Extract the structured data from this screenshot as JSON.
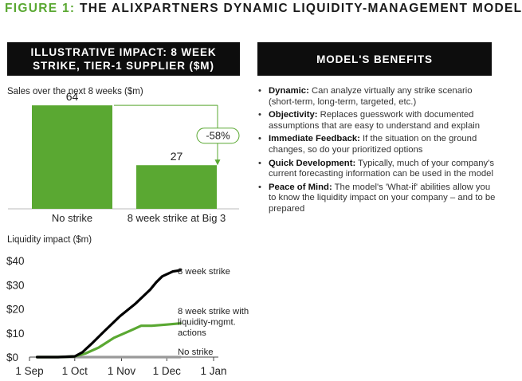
{
  "figure": {
    "number": "FIGURE 1:",
    "title": "THE ALIXPARTNERS DYNAMIC LIQUIDITY-MANAGEMENT MODEL"
  },
  "left_panel": {
    "header": "ILLUSTRATIVE IMPACT: 8 WEEK STRIKE, TIER-1 SUPPLIER ($M)"
  },
  "right_panel": {
    "header": "MODEL'S BENEFITS",
    "benefits": [
      {
        "term": "Dynamic:",
        "text": "Can analyze virtually any strike scenario (short-term, long-term, targeted, etc.)"
      },
      {
        "term": "Objectivity:",
        "text": "Replaces guesswork with documented assumptions that are easy to understand and explain"
      },
      {
        "term": "Immediate Feedback:",
        "text": "If the situation on the ground changes, so do your prioritized options"
      },
      {
        "term": "Quick Development:",
        "text": "Typically, much of your company's current forecasting information can be used in the model"
      },
      {
        "term": "Peace of Mind:",
        "text": "The model's 'What-if' abilities allow you to know the liquidity impact on your company – and to be prepared"
      }
    ],
    "bullet_char": "•"
  },
  "colors": {
    "accent_green": "#5aa832",
    "header_bg": "#0d0d0d",
    "strike_line": "#000000",
    "nostrike_line": "#999999"
  },
  "chart_data": [
    {
      "type": "bar",
      "title": "Sales over the next 8 weeks ($m)",
      "categories": [
        "No strike",
        "8 week strike at Big 3"
      ],
      "values": [
        64,
        27
      ],
      "value_labels": [
        "64",
        "27"
      ],
      "ylim": [
        0,
        70
      ],
      "annotation": "-58%",
      "bar_color": "#5aa832"
    },
    {
      "type": "line",
      "title": "Liquidity impact ($m)",
      "x_ticks": [
        "1 Sep",
        "1 Oct",
        "1 Nov",
        "1 Dec",
        "1 Jan"
      ],
      "y_ticks": [
        "$0",
        "$10",
        "$20",
        "$30",
        "$40"
      ],
      "y_tick_values": [
        0,
        10,
        20,
        30,
        40
      ],
      "xlim": [
        "2019-09-01",
        "2020-01-01"
      ],
      "ylim": [
        0,
        40
      ],
      "series": [
        {
          "name": "8 week strike",
          "color": "#000000",
          "points": [
            [
              "2019-09-06",
              0
            ],
            [
              "2019-09-20",
              0
            ],
            [
              "2019-10-01",
              0.3
            ],
            [
              "2019-10-06",
              2
            ],
            [
              "2019-10-13",
              6
            ],
            [
              "2019-10-21",
              11
            ],
            [
              "2019-10-31",
              17
            ],
            [
              "2019-11-10",
              22
            ],
            [
              "2019-11-20",
              28
            ],
            [
              "2019-11-24",
              31
            ],
            [
              "2019-11-28",
              33.5
            ],
            [
              "2019-12-05",
              35.5
            ],
            [
              "2019-12-10",
              36
            ]
          ]
        },
        {
          "name": "8 week strike with liquidity-mgmt. actions",
          "color": "#5aa832",
          "points": [
            [
              "2019-09-06",
              0
            ],
            [
              "2019-09-20",
              0
            ],
            [
              "2019-10-01",
              0.3
            ],
            [
              "2019-10-08",
              1.5
            ],
            [
              "2019-10-17",
              4
            ],
            [
              "2019-10-27",
              8
            ],
            [
              "2019-11-07",
              11
            ],
            [
              "2019-11-14",
              13
            ],
            [
              "2019-11-21",
              13
            ],
            [
              "2019-12-01",
              13.5
            ],
            [
              "2019-12-10",
              14
            ]
          ]
        },
        {
          "name": "No strike",
          "color": "#999999",
          "points": [
            [
              "2019-09-06",
              0
            ],
            [
              "2019-12-10",
              0
            ]
          ]
        }
      ]
    }
  ]
}
